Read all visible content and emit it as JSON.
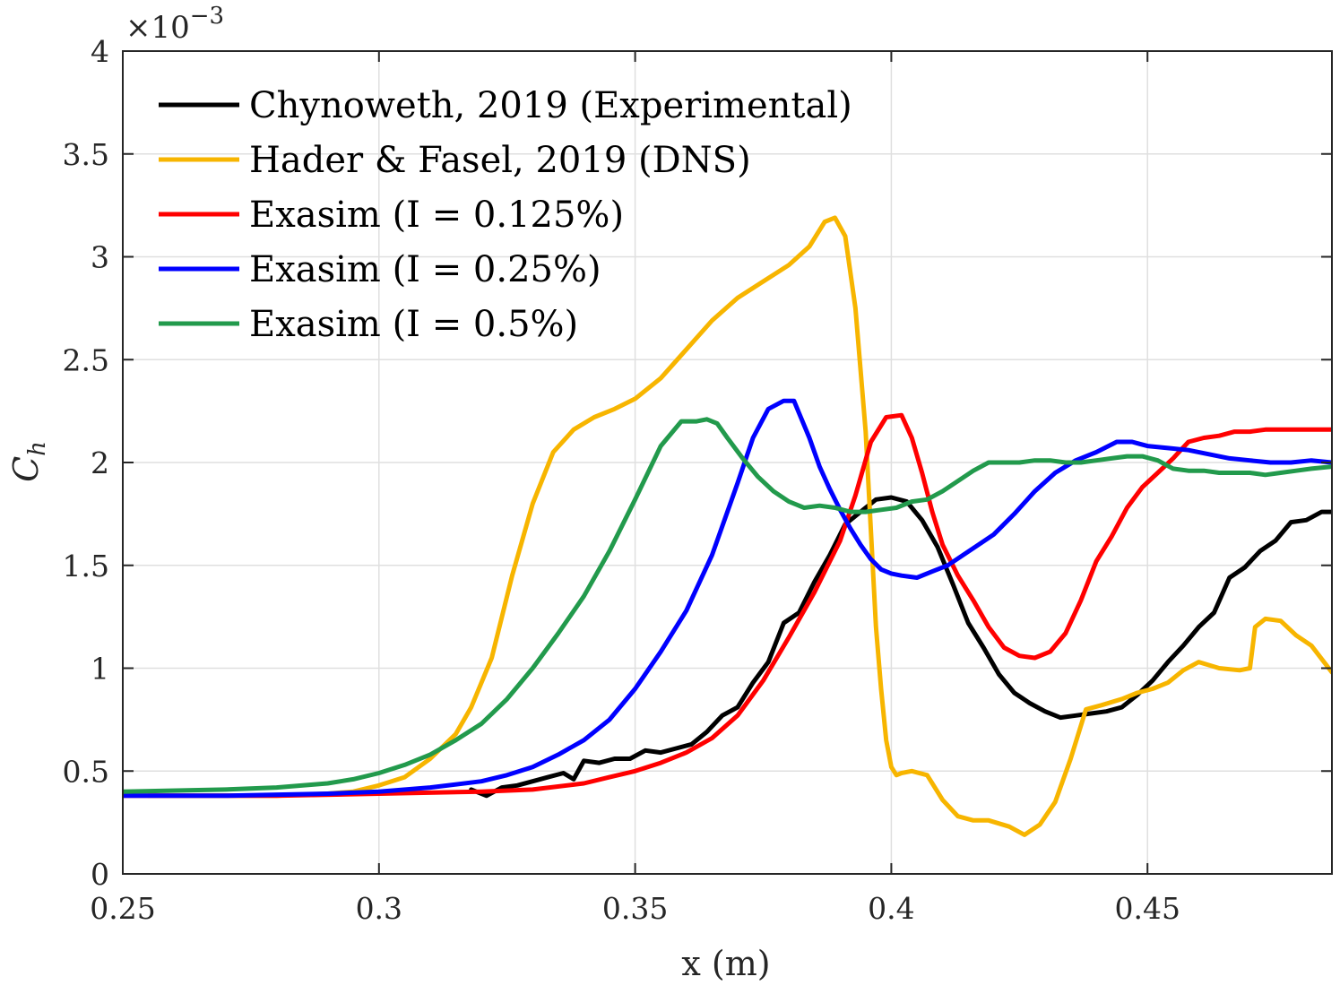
{
  "chart_data": {
    "type": "line",
    "title": "",
    "xlabel": "x (m)",
    "ylabel": "C_h",
    "y_exponent_label": "×10^-3",
    "xlim": [
      0.25,
      0.486
    ],
    "ylim": [
      0,
      4
    ],
    "xticks": [
      0.25,
      0.3,
      0.35,
      0.4,
      0.45
    ],
    "xtick_labels": [
      "0.25",
      "0.3",
      "0.35",
      "0.4",
      "0.45"
    ],
    "yticks": [
      0,
      0.5,
      1,
      1.5,
      2,
      2.5,
      3,
      3.5,
      4
    ],
    "ytick_labels": [
      "0",
      "0.5",
      "1",
      "1.5",
      "2",
      "2.5",
      "3",
      "3.5",
      "4"
    ],
    "grid": true,
    "legend_position": "top-left",
    "series": [
      {
        "name": "Chynoweth, 2019 (Experimental)",
        "color": "#000000",
        "x": [
          0.318,
          0.321,
          0.324,
          0.327,
          0.33,
          0.333,
          0.336,
          0.338,
          0.34,
          0.343,
          0.346,
          0.349,
          0.352,
          0.355,
          0.358,
          0.361,
          0.364,
          0.367,
          0.37,
          0.373,
          0.376,
          0.379,
          0.382,
          0.385,
          0.388,
          0.391,
          0.394,
          0.397,
          0.4,
          0.403,
          0.406,
          0.409,
          0.412,
          0.415,
          0.418,
          0.421,
          0.424,
          0.427,
          0.43,
          0.433,
          0.436,
          0.439,
          0.442,
          0.445,
          0.448,
          0.451,
          0.454,
          0.457,
          0.46,
          0.463,
          0.466,
          0.469,
          0.472,
          0.475,
          0.478,
          0.481,
          0.484,
          0.486
        ],
        "values": [
          0.41,
          0.38,
          0.42,
          0.43,
          0.45,
          0.47,
          0.49,
          0.46,
          0.55,
          0.54,
          0.56,
          0.56,
          0.6,
          0.59,
          0.61,
          0.63,
          0.69,
          0.77,
          0.81,
          0.93,
          1.03,
          1.22,
          1.27,
          1.42,
          1.55,
          1.7,
          1.76,
          1.82,
          1.83,
          1.81,
          1.72,
          1.59,
          1.41,
          1.22,
          1.1,
          0.97,
          0.88,
          0.83,
          0.79,
          0.76,
          0.77,
          0.78,
          0.79,
          0.81,
          0.87,
          0.94,
          1.03,
          1.11,
          1.2,
          1.27,
          1.44,
          1.49,
          1.57,
          1.62,
          1.71,
          1.72,
          1.76,
          1.76
        ]
      },
      {
        "name": "Hader & Fasel, 2019 (DNS)",
        "color": "#f7b500",
        "x": [
          0.255,
          0.27,
          0.28,
          0.29,
          0.295,
          0.3,
          0.305,
          0.31,
          0.315,
          0.318,
          0.322,
          0.326,
          0.33,
          0.334,
          0.338,
          0.342,
          0.346,
          0.35,
          0.355,
          0.36,
          0.365,
          0.37,
          0.375,
          0.38,
          0.384,
          0.387,
          0.389,
          0.391,
          0.393,
          0.395,
          0.397,
          0.398,
          0.399,
          0.4,
          0.401,
          0.402,
          0.404,
          0.407,
          0.41,
          0.413,
          0.416,
          0.419,
          0.423,
          0.426,
          0.429,
          0.432,
          0.435,
          0.438,
          0.441,
          0.445,
          0.448,
          0.451,
          0.454,
          0.457,
          0.46,
          0.464,
          0.468,
          0.47,
          0.471,
          0.473,
          0.476,
          0.479,
          0.482,
          0.486
        ],
        "values": [
          0.38,
          0.38,
          0.38,
          0.39,
          0.4,
          0.43,
          0.47,
          0.56,
          0.68,
          0.81,
          1.05,
          1.45,
          1.8,
          2.05,
          2.16,
          2.22,
          2.26,
          2.31,
          2.41,
          2.55,
          2.69,
          2.8,
          2.88,
          2.96,
          3.05,
          3.17,
          3.19,
          3.1,
          2.75,
          2.15,
          1.2,
          0.9,
          0.65,
          0.52,
          0.48,
          0.49,
          0.5,
          0.48,
          0.36,
          0.28,
          0.26,
          0.26,
          0.23,
          0.19,
          0.24,
          0.35,
          0.56,
          0.8,
          0.82,
          0.85,
          0.88,
          0.9,
          0.93,
          0.99,
          1.03,
          1.0,
          0.99,
          1.0,
          1.2,
          1.24,
          1.23,
          1.16,
          1.11,
          0.98
        ]
      },
      {
        "name": "Exasim (I = 0.125%)",
        "color": "#ff0000",
        "x": [
          0.25,
          0.28,
          0.3,
          0.32,
          0.33,
          0.34,
          0.345,
          0.35,
          0.355,
          0.36,
          0.365,
          0.37,
          0.375,
          0.38,
          0.385,
          0.39,
          0.393,
          0.396,
          0.399,
          0.402,
          0.404,
          0.406,
          0.408,
          0.41,
          0.413,
          0.416,
          0.419,
          0.422,
          0.425,
          0.428,
          0.431,
          0.434,
          0.437,
          0.44,
          0.443,
          0.446,
          0.449,
          0.452,
          0.455,
          0.458,
          0.461,
          0.464,
          0.467,
          0.47,
          0.473,
          0.476,
          0.479,
          0.482,
          0.486
        ],
        "values": [
          0.38,
          0.38,
          0.39,
          0.4,
          0.41,
          0.44,
          0.47,
          0.5,
          0.54,
          0.59,
          0.66,
          0.77,
          0.94,
          1.15,
          1.37,
          1.62,
          1.84,
          2.1,
          2.22,
          2.23,
          2.12,
          1.95,
          1.76,
          1.6,
          1.45,
          1.33,
          1.2,
          1.1,
          1.06,
          1.05,
          1.08,
          1.17,
          1.33,
          1.52,
          1.64,
          1.78,
          1.88,
          1.95,
          2.02,
          2.1,
          2.12,
          2.13,
          2.15,
          2.15,
          2.16,
          2.16,
          2.16,
          2.16,
          2.16
        ]
      },
      {
        "name": "Exasim (I = 0.25%)",
        "color": "#0000ff",
        "x": [
          0.25,
          0.27,
          0.29,
          0.3,
          0.31,
          0.32,
          0.325,
          0.33,
          0.335,
          0.34,
          0.345,
          0.35,
          0.355,
          0.36,
          0.365,
          0.37,
          0.373,
          0.376,
          0.379,
          0.381,
          0.382,
          0.384,
          0.386,
          0.388,
          0.39,
          0.392,
          0.394,
          0.396,
          0.398,
          0.4,
          0.402,
          0.405,
          0.408,
          0.411,
          0.414,
          0.417,
          0.42,
          0.424,
          0.428,
          0.432,
          0.436,
          0.44,
          0.444,
          0.447,
          0.45,
          0.454,
          0.458,
          0.462,
          0.466,
          0.47,
          0.474,
          0.478,
          0.482,
          0.486
        ],
        "values": [
          0.38,
          0.38,
          0.39,
          0.4,
          0.42,
          0.45,
          0.48,
          0.52,
          0.58,
          0.65,
          0.75,
          0.9,
          1.08,
          1.28,
          1.55,
          1.9,
          2.12,
          2.26,
          2.3,
          2.3,
          2.24,
          2.12,
          1.98,
          1.87,
          1.77,
          1.68,
          1.6,
          1.53,
          1.48,
          1.46,
          1.45,
          1.44,
          1.47,
          1.5,
          1.55,
          1.6,
          1.65,
          1.75,
          1.86,
          1.95,
          2.01,
          2.05,
          2.1,
          2.1,
          2.08,
          2.07,
          2.06,
          2.04,
          2.02,
          2.01,
          2.0,
          2.0,
          2.01,
          2.0
        ]
      },
      {
        "name": "Exasim (I = 0.5%)",
        "color": "#229a4c",
        "x": [
          0.25,
          0.27,
          0.28,
          0.29,
          0.295,
          0.3,
          0.305,
          0.31,
          0.315,
          0.32,
          0.325,
          0.33,
          0.335,
          0.34,
          0.345,
          0.35,
          0.355,
          0.359,
          0.362,
          0.364,
          0.366,
          0.368,
          0.371,
          0.374,
          0.377,
          0.38,
          0.383,
          0.386,
          0.389,
          0.392,
          0.395,
          0.398,
          0.401,
          0.404,
          0.407,
          0.41,
          0.413,
          0.416,
          0.419,
          0.422,
          0.425,
          0.428,
          0.431,
          0.434,
          0.437,
          0.44,
          0.443,
          0.446,
          0.449,
          0.452,
          0.455,
          0.458,
          0.461,
          0.464,
          0.467,
          0.47,
          0.473,
          0.476,
          0.479,
          0.482,
          0.486
        ],
        "values": [
          0.4,
          0.41,
          0.42,
          0.44,
          0.46,
          0.49,
          0.53,
          0.58,
          0.65,
          0.73,
          0.85,
          1.0,
          1.17,
          1.35,
          1.57,
          1.82,
          2.08,
          2.2,
          2.2,
          2.21,
          2.19,
          2.12,
          2.02,
          1.93,
          1.86,
          1.81,
          1.78,
          1.79,
          1.78,
          1.76,
          1.76,
          1.77,
          1.78,
          1.81,
          1.82,
          1.86,
          1.91,
          1.96,
          2.0,
          2.0,
          2.0,
          2.01,
          2.01,
          2.0,
          2.0,
          2.01,
          2.02,
          2.03,
          2.03,
          2.01,
          1.97,
          1.96,
          1.96,
          1.95,
          1.95,
          1.95,
          1.94,
          1.95,
          1.96,
          1.97,
          1.98
        ]
      }
    ]
  }
}
